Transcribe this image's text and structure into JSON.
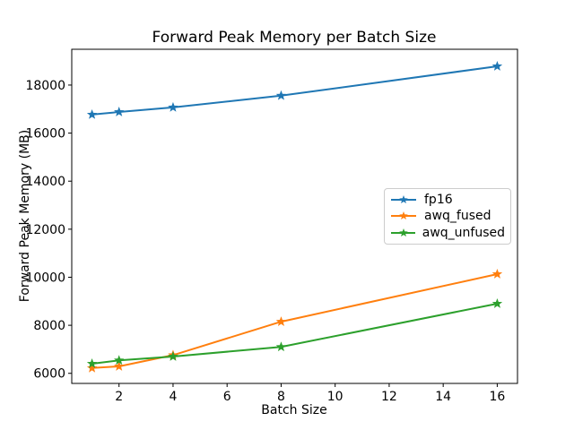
{
  "figure": {
    "background": "#ffffff",
    "frame_color": "#000000",
    "legend_border_color": "#cccccc"
  },
  "chart_data": {
    "type": "line",
    "title": "Forward Peak Memory per Batch Size",
    "xlabel": "Batch Size",
    "ylabel": "Forward Peak Memory (MB)",
    "x": [
      1,
      2,
      4,
      8,
      16
    ],
    "series": [
      {
        "name": "fp16",
        "color": "#1f77b4",
        "marker": "star",
        "values": [
          16770,
          16880,
          17070,
          17560,
          18780
        ]
      },
      {
        "name": "awq_fused",
        "color": "#ff7f0e",
        "marker": "star",
        "values": [
          6220,
          6290,
          6760,
          8150,
          10130
        ]
      },
      {
        "name": "awq_unfused",
        "color": "#2ca02c",
        "marker": "star",
        "values": [
          6400,
          6540,
          6700,
          7100,
          8900
        ]
      }
    ],
    "xticks": [
      2,
      4,
      6,
      8,
      10,
      12,
      14,
      16
    ],
    "yticks": [
      6000,
      8000,
      10000,
      12000,
      14000,
      16000,
      18000
    ],
    "xlim": [
      0.25,
      16.75
    ],
    "ylim": [
      5580,
      19490
    ],
    "grid": false,
    "legend_position": "center right"
  }
}
